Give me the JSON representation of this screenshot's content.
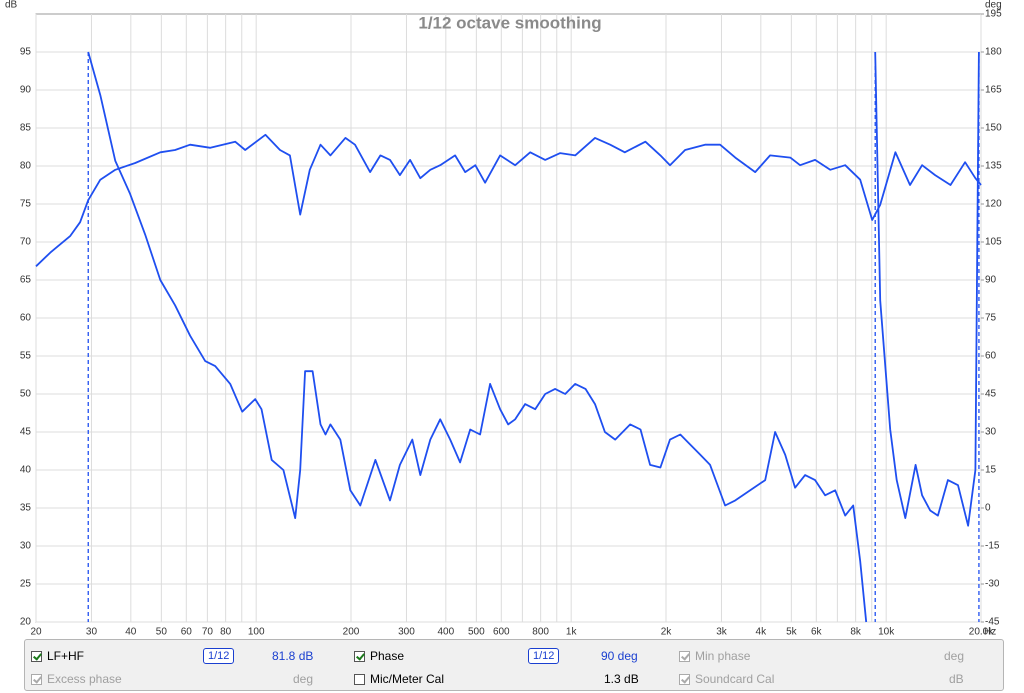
{
  "chart_data": {
    "type": "line",
    "title": "1/12 octave smoothing",
    "y_unit": "dB",
    "y2_unit": "deg",
    "x_unit": "Hz",
    "xscale": "log",
    "grid": true,
    "xlim": [
      20,
      20000
    ],
    "xticks": [
      20,
      30,
      40,
      50,
      60,
      70,
      80,
      100,
      200,
      300,
      400,
      500,
      600,
      800,
      {
        "value": 1000,
        "label": "1k"
      },
      {
        "value": 2000,
        "label": "2k"
      },
      {
        "value": 3000,
        "label": "3k"
      },
      {
        "value": 4000,
        "label": "4k"
      },
      {
        "value": 5000,
        "label": "5k"
      },
      {
        "value": 6000,
        "label": "6k"
      },
      {
        "value": 8000,
        "label": "8k"
      },
      {
        "value": 10000,
        "label": "10k"
      },
      {
        "value": 20000,
        "label": "20.0k"
      }
    ],
    "xgrid_minor": [
      90,
      700,
      900,
      7000,
      9000
    ],
    "ylim": [
      20,
      100
    ],
    "yticks": [
      20,
      25,
      30,
      35,
      40,
      45,
      50,
      55,
      60,
      65,
      70,
      75,
      80,
      85,
      90,
      95
    ],
    "y2lim": [
      -45,
      195
    ],
    "y2ticks": [
      -45,
      -30,
      -15,
      0,
      15,
      30,
      45,
      60,
      75,
      90,
      105,
      120,
      135,
      150,
      165,
      180,
      195
    ],
    "series": [
      {
        "name": "LF+HF",
        "color": "#1f4ff0",
        "x": [
          20,
          22.2,
          25.7,
          27.6,
          29.3,
          32,
          35.7,
          41.3,
          49.6,
          55.3,
          61.7,
          71.5,
          85.8,
          92.3,
          107,
          119,
          128,
          138,
          148,
          160,
          172,
          192,
          206,
          230,
          248,
          266,
          286,
          308,
          332,
          357,
          384,
          428,
          461,
          496,
          533,
          595,
          664,
          741,
          827,
          923,
          1030,
          1190,
          1330,
          1480,
          1720,
          1920,
          2060,
          2300,
          2660,
          2970,
          3320,
          3840,
          4280,
          4960,
          5330,
          5950,
          6640,
          7410,
          8270,
          9030,
          9570,
          10700,
          11900,
          13000,
          14300,
          16000,
          17800,
          19200,
          20000
        ],
        "values": [
          66.8,
          68.6,
          70.8,
          72.6,
          75.5,
          78.2,
          79.5,
          80.4,
          81.8,
          82.1,
          82.8,
          82.4,
          83.2,
          82.1,
          84.1,
          82.1,
          81.4,
          73.6,
          79.5,
          82.8,
          81.4,
          83.7,
          82.8,
          79.2,
          81.4,
          80.8,
          78.8,
          80.8,
          78.4,
          79.5,
          80.1,
          81.4,
          79.2,
          80.1,
          77.8,
          81.4,
          80.1,
          81.8,
          80.8,
          81.7,
          81.4,
          83.7,
          82.8,
          81.8,
          83.2,
          81.4,
          80.1,
          82.1,
          82.8,
          82.8,
          81.1,
          79.2,
          81.4,
          81.1,
          80.1,
          80.8,
          79.5,
          80.1,
          78.2,
          72.9,
          74.9,
          81.8,
          77.5,
          80.1,
          78.8,
          77.5,
          80.5,
          78.4,
          77.5
        ]
      },
      {
        "name": "Phase",
        "color": "#1f4ff0",
        "axis": "y2",
        "x": [
          29.3,
          32,
          35.7,
          39.8,
          44.4,
          49.6,
          55.3,
          61.7,
          68.9,
          74.1,
          82.7,
          90.3,
          99.3,
          104,
          112,
          122,
          133,
          138,
          143,
          151,
          160,
          166,
          172,
          185,
          199,
          214,
          239,
          266,
          286,
          313,
          332,
          357,
          384,
          413,
          444,
          478,
          514,
          553,
          595,
          631,
          664,
          714,
          769,
          827,
          889,
          957,
          1030,
          1110,
          1190,
          1280,
          1380,
          1540,
          1660,
          1780,
          1920,
          2060,
          2220,
          2390,
          2570,
          2760,
          3080,
          3320,
          3700,
          4130,
          4440,
          4780,
          5140,
          5530,
          5950,
          6400,
          6890,
          7410,
          7860,
          8270,
          8640,
          null,
          9230,
          9570,
          10300,
          10800,
          11500,
          12400,
          13000,
          13800,
          14600,
          15700,
          16900,
          18200,
          19200,
          19700
        ],
        "values": [
          180,
          163,
          137,
          124,
          108,
          90,
          80,
          68,
          58,
          56,
          49,
          38,
          43,
          39,
          19,
          15,
          -4,
          15,
          54,
          54,
          33,
          29,
          33,
          27,
          7,
          1,
          19,
          3,
          17,
          27,
          13,
          27,
          35,
          27,
          18,
          31,
          29,
          49,
          39,
          33,
          35,
          41,
          39,
          45,
          47,
          45,
          49,
          47,
          41,
          30,
          27,
          33,
          31,
          17,
          16,
          27,
          29,
          25,
          21,
          17,
          1,
          3,
          7,
          11,
          30,
          21,
          8,
          13,
          11,
          5,
          7,
          -3,
          1,
          -21,
          -45,
          null,
          180,
          82,
          31,
          11,
          -4,
          17,
          5,
          -1,
          -3,
          11,
          9,
          -7,
          15,
          180
        ]
      }
    ]
  },
  "controls": {
    "lf_hf": {
      "checked": true,
      "enabled": true,
      "smoothing": "1/12",
      "readout": "81.8 dB"
    },
    "phase": {
      "checked": true,
      "enabled": true,
      "smoothing": "1/12",
      "readout": "90 deg"
    },
    "min_phase": {
      "label": "Min phase",
      "checked": true,
      "enabled": false,
      "readout": "deg"
    },
    "excess_phase": {
      "label": "Excess phase",
      "checked": true,
      "enabled": false,
      "readout": "deg"
    },
    "mic_cal": {
      "label": "Mic/Meter Cal",
      "checked": false,
      "enabled": true,
      "readout": "1.3 dB"
    },
    "soundcard_cal": {
      "label": "Soundcard Cal",
      "checked": true,
      "enabled": false,
      "readout": "dB"
    }
  }
}
